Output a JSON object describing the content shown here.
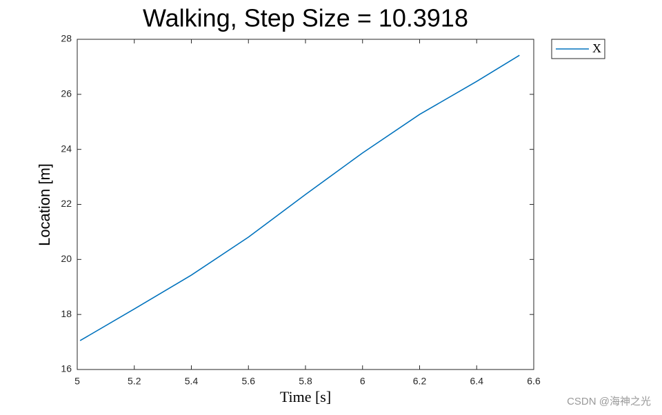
{
  "chart_data": {
    "type": "line",
    "title": "Walking, Step Size = 10.3918",
    "xlabel": "Time [s]",
    "ylabel": "Location [m]",
    "x": [
      5.01,
      5.2,
      5.4,
      5.6,
      5.8,
      6.0,
      6.2,
      6.4,
      6.55
    ],
    "series": [
      {
        "name": "X",
        "color": "#0072bd",
        "values": [
          17.05,
          18.2,
          19.43,
          20.81,
          22.36,
          23.87,
          25.27,
          26.47,
          27.42
        ]
      }
    ],
    "xlim": [
      5,
      6.6
    ],
    "xticks": [
      5,
      5.2,
      5.4,
      5.6,
      5.8,
      6,
      6.2,
      6.4,
      6.6
    ],
    "ylim": [
      16,
      28
    ],
    "yticks": [
      16,
      18,
      20,
      22,
      24,
      26,
      28
    ],
    "grid": false,
    "legend": "outside-right"
  },
  "watermark": "CSDN @海神之光"
}
